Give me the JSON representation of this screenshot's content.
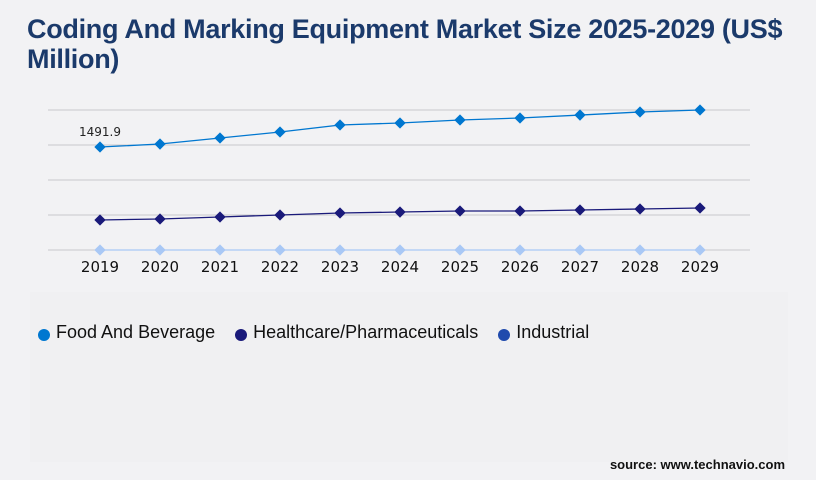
{
  "title": "Coding And Marking Equipment Market Size 2025-2029 (US$ Million)",
  "source": "source: www.technavio.com",
  "chart_data": {
    "type": "line",
    "title": "Coding And Marking Equipment Market Size 2025-2029 (US$ Million)",
    "categories": [
      "2019",
      "2020",
      "2021",
      "2022",
      "2023",
      "2024",
      "2025",
      "2026",
      "2027",
      "2028",
      "2029"
    ],
    "series": [
      {
        "name": "Food And Beverage",
        "color": "#0077d0",
        "legend_color": "#0077d0",
        "values": [
          1491.9,
          1535,
          1622,
          1709,
          1811,
          1840,
          1883,
          1912,
          1955,
          1999,
          2028
        ]
      },
      {
        "name": "Healthcare/Pharmaceuticals",
        "color": "#1a1a7a",
        "legend_color": "#1a1a7a",
        "values": [
          435,
          449,
          478,
          507,
          536,
          550,
          565,
          565,
          579,
          594,
          608
        ]
      },
      {
        "name": "Industrial",
        "color": "#a9c8f5",
        "legend_color": "#1f4aad",
        "values": [
          0,
          0,
          0,
          0,
          0,
          0,
          0,
          0,
          0,
          0,
          0
        ]
      }
    ],
    "data_labels": [
      {
        "series": 0,
        "index": 0,
        "text": "1491.9"
      }
    ],
    "ylim": [
      0,
      2028
    ],
    "grid": true,
    "legend": "bottom-left",
    "xlabel": "",
    "ylabel": ""
  }
}
